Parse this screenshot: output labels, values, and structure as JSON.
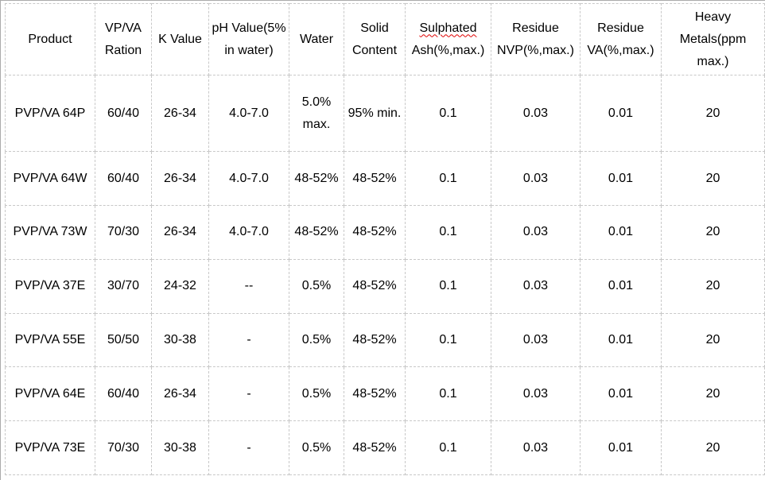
{
  "colors": {
    "cell_border": "#c8c8c8",
    "outer_border": "#ababab",
    "text": "#000000",
    "spellcheck_squiggle": "#e00000",
    "background": "#ffffff"
  },
  "table": {
    "header": [
      {
        "lines": [
          "Product"
        ]
      },
      {
        "lines": [
          "VP/VA",
          "Ration"
        ]
      },
      {
        "lines": [
          "K Value"
        ]
      },
      {
        "lines": [
          "pH Value(5%",
          "in water)"
        ]
      },
      {
        "lines": [
          "Water"
        ]
      },
      {
        "lines": [
          "Solid",
          "Content"
        ]
      },
      {
        "lines": [
          "Sulphated",
          "Ash(%,max.)"
        ],
        "squiggle_line": 0
      },
      {
        "lines": [
          "Residue",
          "NVP(%,max.)"
        ]
      },
      {
        "lines": [
          "Residue",
          "VA(%,max.)"
        ]
      },
      {
        "lines": [
          "Heavy",
          "Metals(ppm max.)"
        ]
      }
    ],
    "rows": [
      {
        "cells": [
          [
            "PVP/VA 64P"
          ],
          [
            "60/40"
          ],
          [
            "26-34"
          ],
          [
            "4.0-7.0"
          ],
          [
            "5.0%",
            "max."
          ],
          [
            "95% min."
          ],
          [
            "0.1"
          ],
          [
            "0.03"
          ],
          [
            "0.01"
          ],
          [
            "20"
          ]
        ]
      },
      {
        "cells": [
          [
            "PVP/VA 64W"
          ],
          [
            "60/40"
          ],
          [
            "26-34"
          ],
          [
            "4.0-7.0"
          ],
          [
            "48-52%"
          ],
          [
            "48-52%"
          ],
          [
            "0.1"
          ],
          [
            "0.03"
          ],
          [
            "0.01"
          ],
          [
            "20"
          ]
        ]
      },
      {
        "cells": [
          [
            "PVP/VA 73W"
          ],
          [
            "70/30"
          ],
          [
            "26-34"
          ],
          [
            "4.0-7.0"
          ],
          [
            "48-52%"
          ],
          [
            "48-52%"
          ],
          [
            "0.1"
          ],
          [
            "0.03"
          ],
          [
            "0.01"
          ],
          [
            "20"
          ]
        ]
      },
      {
        "cells": [
          [
            "PVP/VA 37E"
          ],
          [
            "30/70"
          ],
          [
            "24-32"
          ],
          [
            "--"
          ],
          [
            "0.5%"
          ],
          [
            "48-52%"
          ],
          [
            "0.1"
          ],
          [
            "0.03"
          ],
          [
            "0.01"
          ],
          [
            "20"
          ]
        ]
      },
      {
        "cells": [
          [
            "PVP/VA 55E"
          ],
          [
            "50/50"
          ],
          [
            "30-38"
          ],
          [
            "-"
          ],
          [
            "0.5%"
          ],
          [
            "48-52%"
          ],
          [
            "0.1"
          ],
          [
            "0.03"
          ],
          [
            "0.01"
          ],
          [
            "20"
          ]
        ]
      },
      {
        "cells": [
          [
            "PVP/VA 64E"
          ],
          [
            "60/40"
          ],
          [
            "26-34"
          ],
          [
            "-"
          ],
          [
            "0.5%"
          ],
          [
            "48-52%"
          ],
          [
            "0.1"
          ],
          [
            "0.03"
          ],
          [
            "0.01"
          ],
          [
            "20"
          ]
        ]
      },
      {
        "cells": [
          [
            "PVP/VA 73E"
          ],
          [
            "70/30"
          ],
          [
            "30-38"
          ],
          [
            "-"
          ],
          [
            "0.5%"
          ],
          [
            "48-52%"
          ],
          [
            "0.1"
          ],
          [
            "0.03"
          ],
          [
            "0.01"
          ],
          [
            "20"
          ]
        ]
      }
    ]
  }
}
